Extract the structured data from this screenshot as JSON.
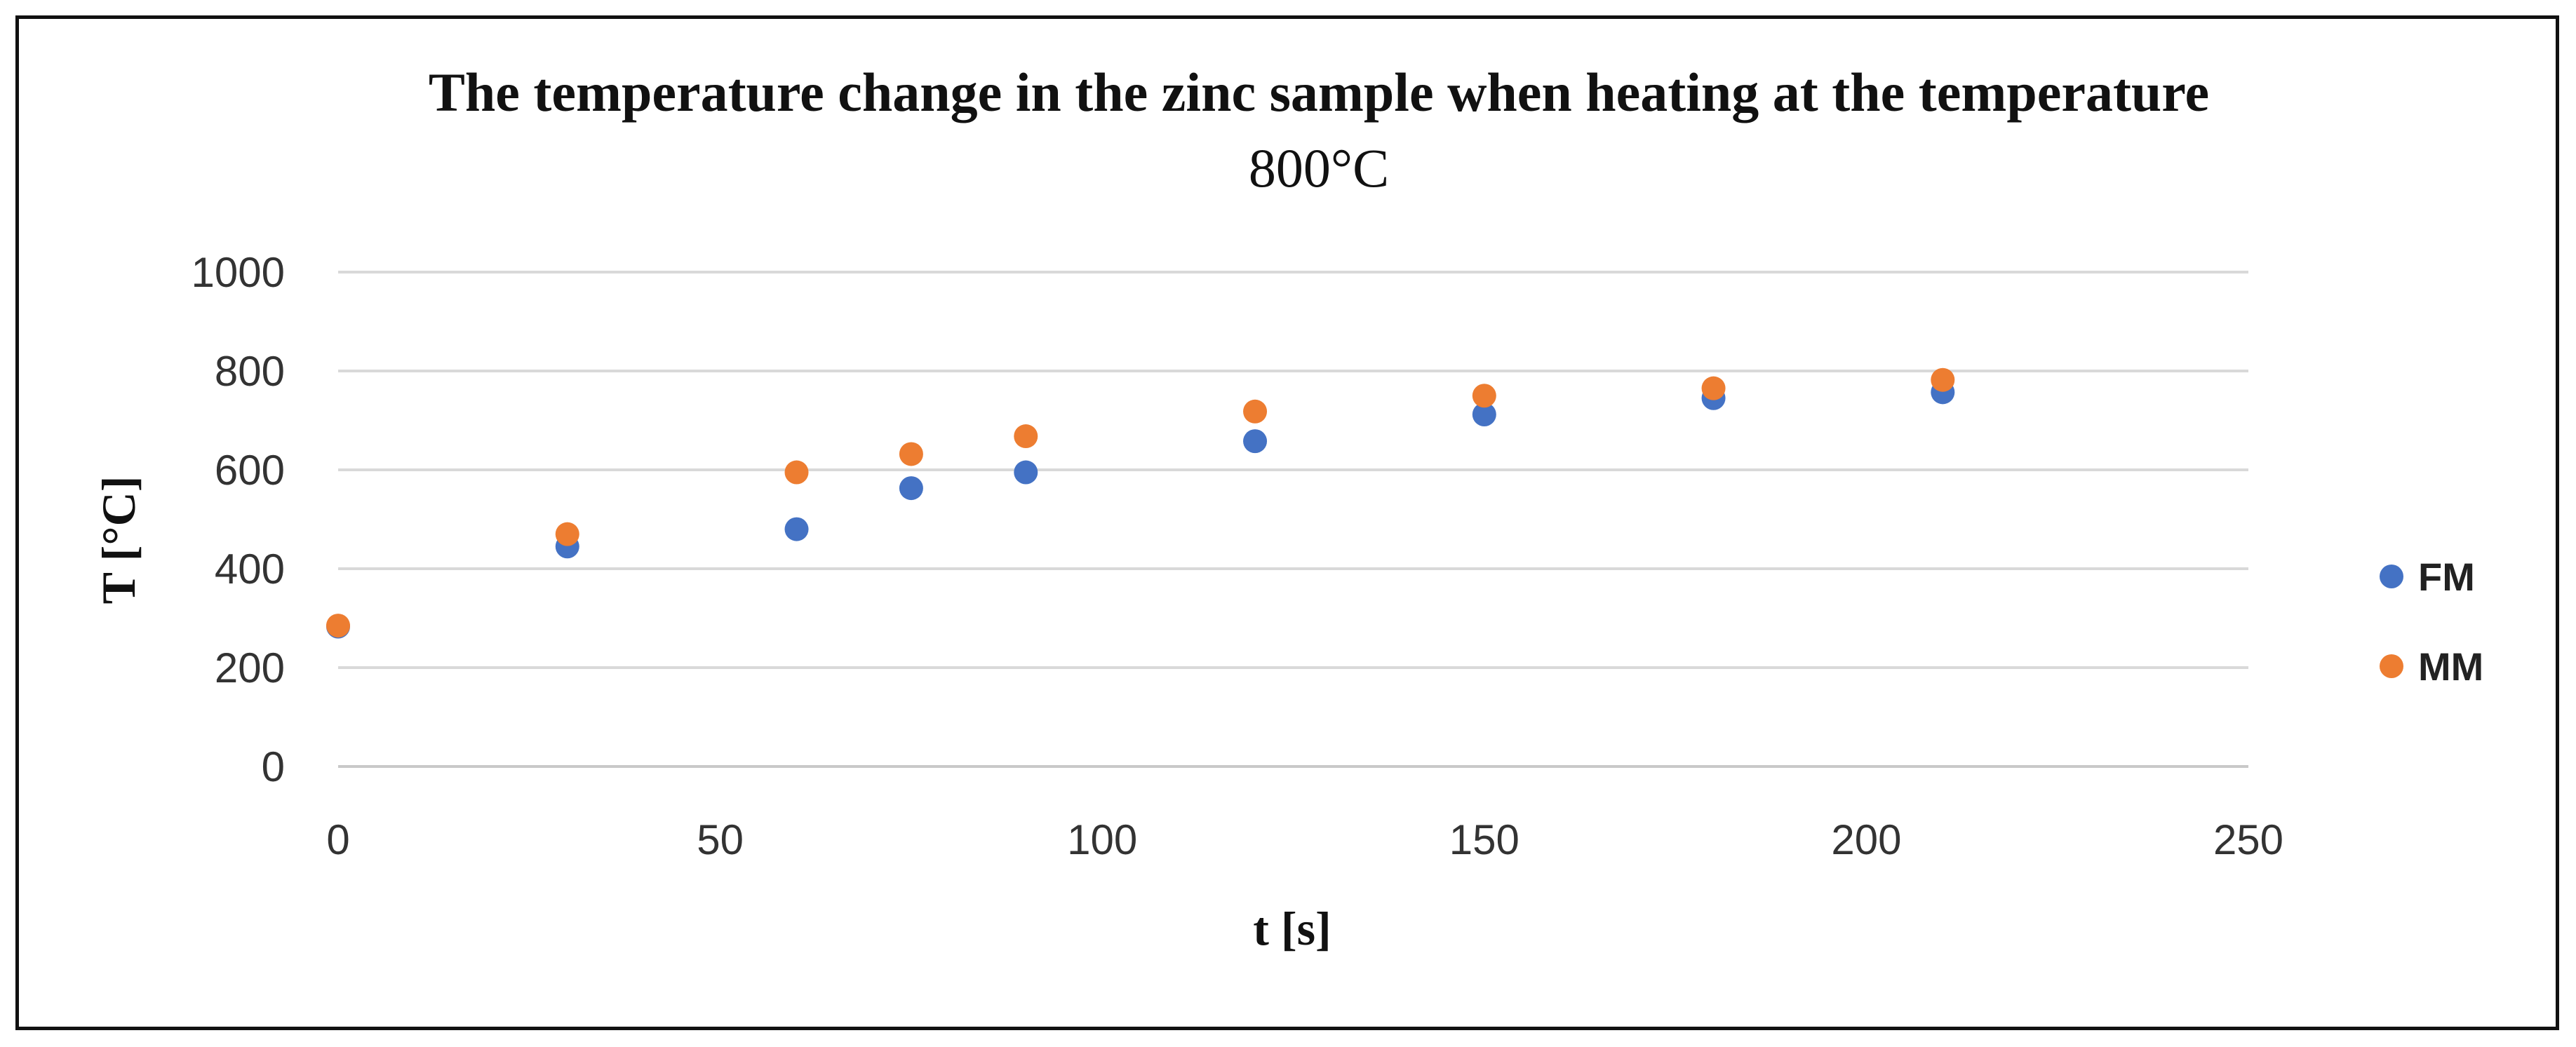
{
  "chart_data": {
    "type": "scatter",
    "title": "The temperature change in the zinc sample when heating at the temperature",
    "title_line2": "800°C",
    "xlabel": "t [s]",
    "ylabel": "T [°C]",
    "xlim": [
      0,
      250
    ],
    "ylim": [
      0,
      1000
    ],
    "xticks": [
      0,
      50,
      100,
      150,
      200,
      250
    ],
    "yticks": [
      0,
      200,
      400,
      600,
      800,
      1000
    ],
    "grid": "horizontal",
    "legend_position": "right",
    "series": [
      {
        "name": "FM",
        "color": "#4472C4",
        "x": [
          0,
          30,
          60,
          75,
          90,
          120,
          150,
          180,
          210
        ],
        "y": [
          283,
          445,
          480,
          563,
          595,
          658,
          712,
          745,
          757
        ]
      },
      {
        "name": "MM",
        "color": "#ED7D31",
        "x": [
          0,
          30,
          60,
          75,
          90,
          120,
          150,
          180,
          210
        ],
        "y": [
          285,
          470,
          595,
          632,
          668,
          718,
          750,
          765,
          782
        ]
      }
    ]
  }
}
